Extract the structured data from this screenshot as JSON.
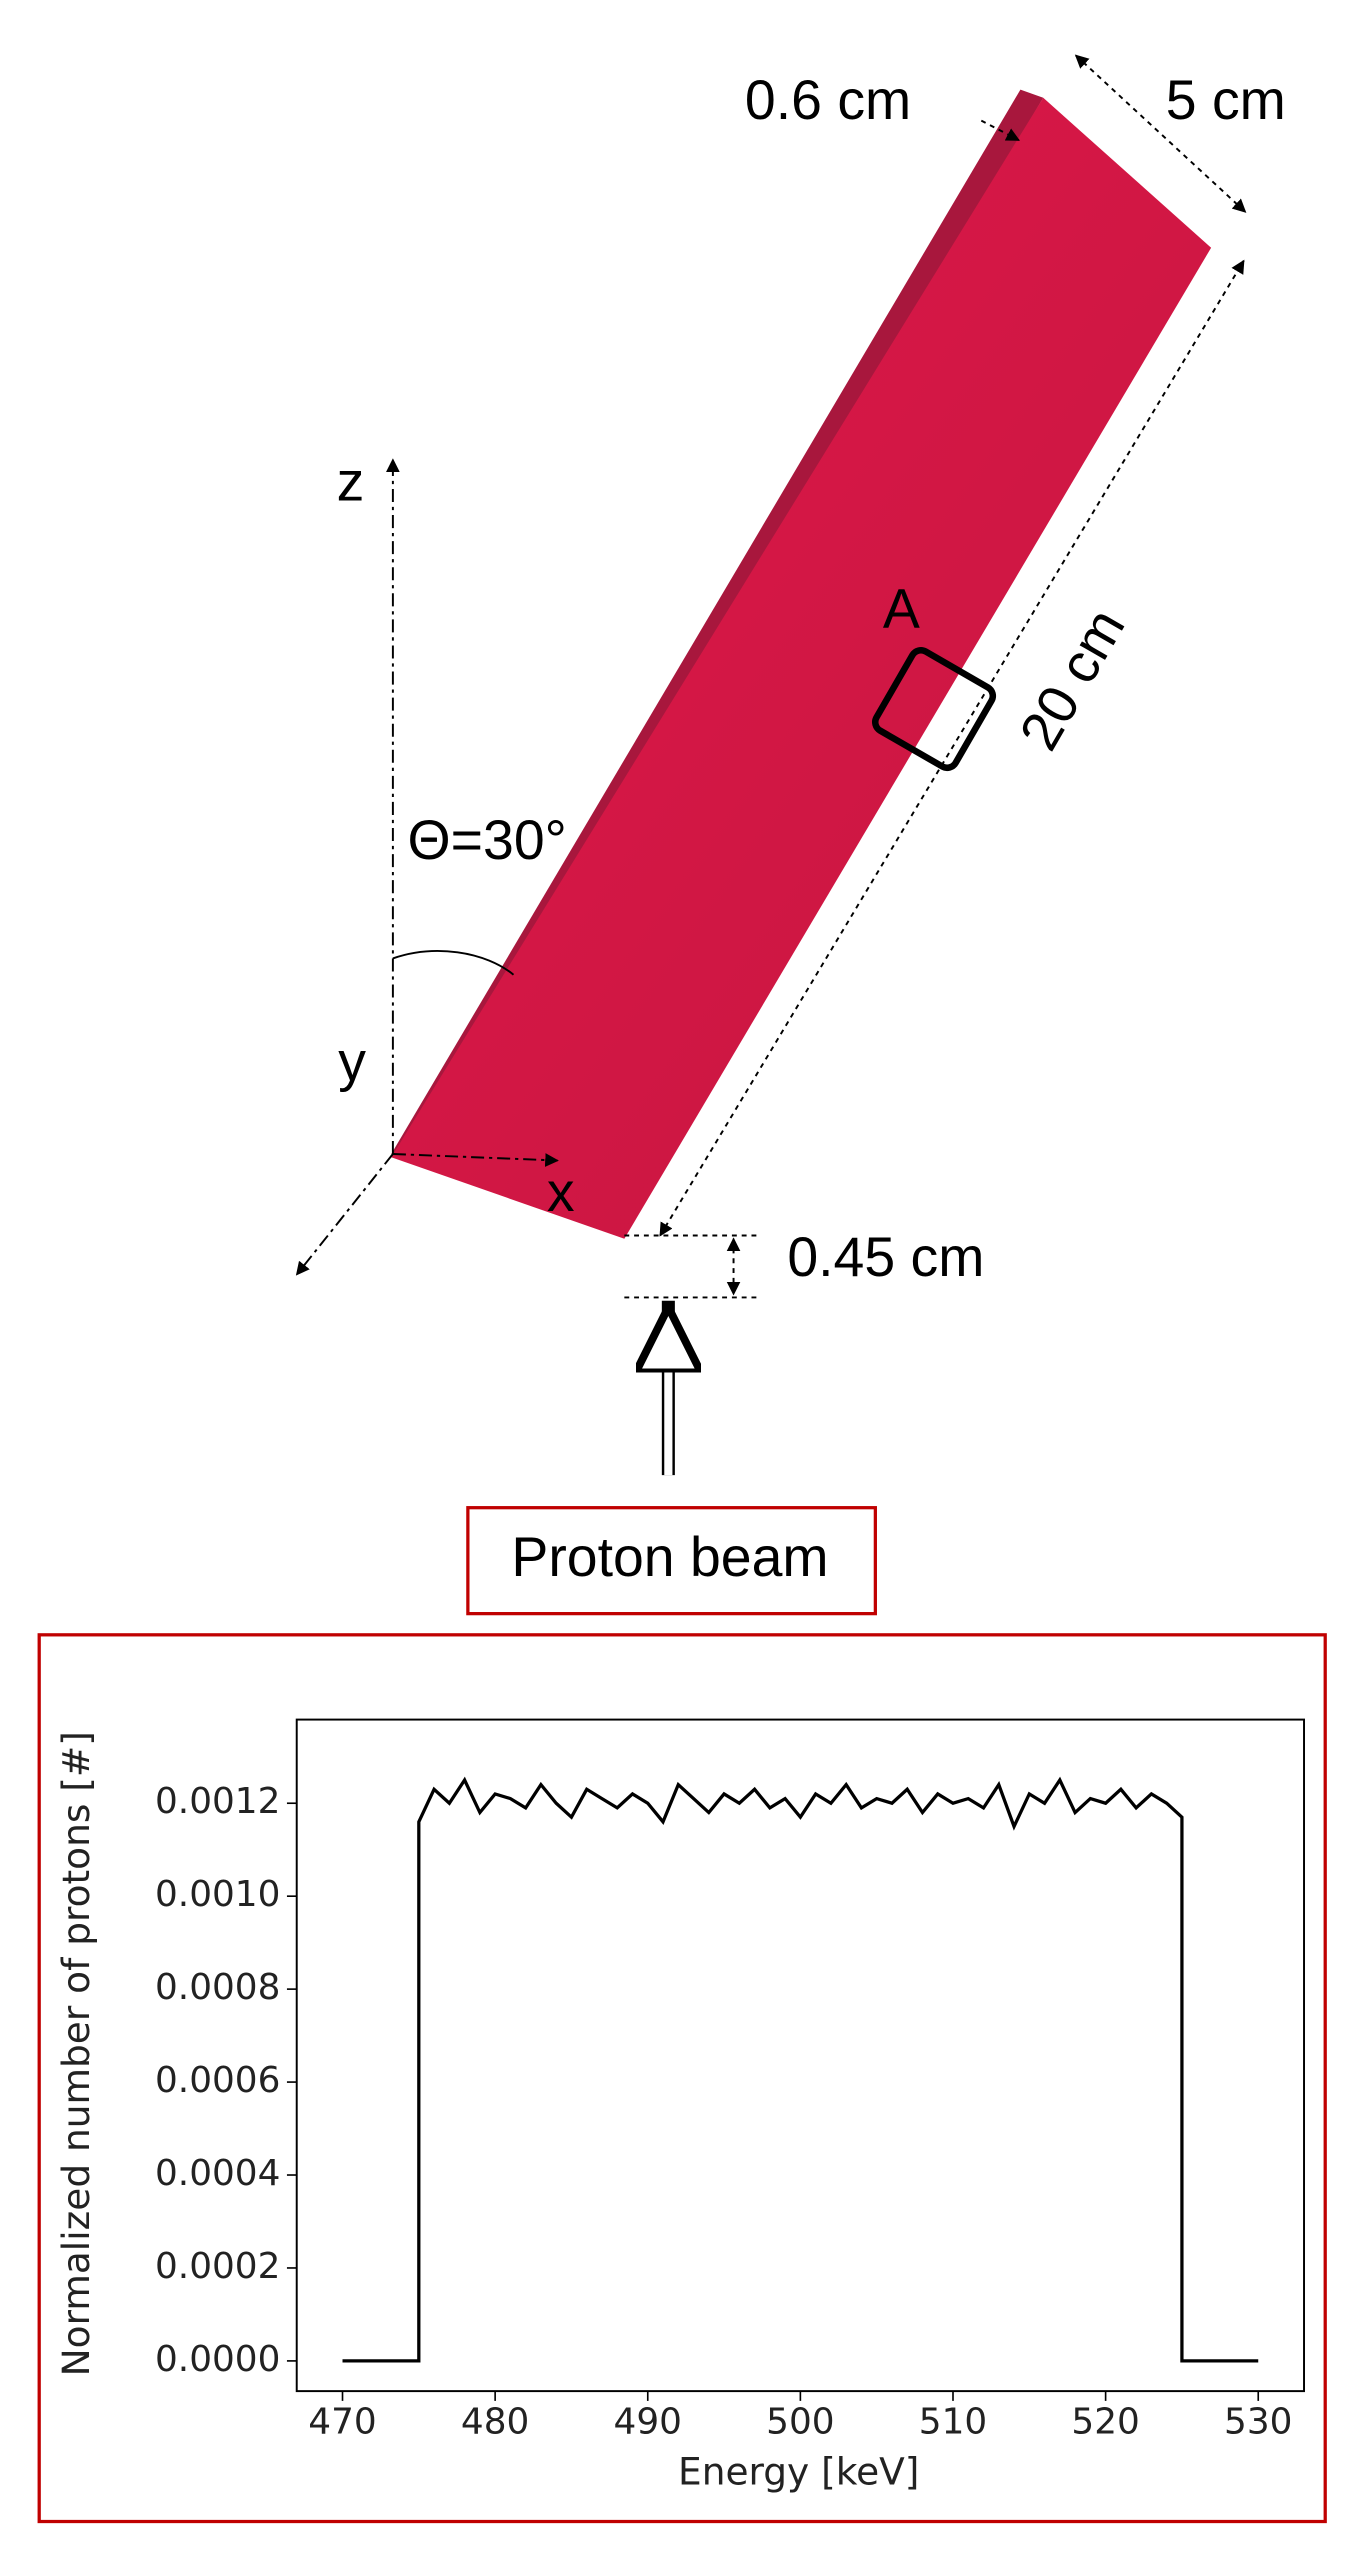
{
  "labels": {
    "thickness": "0.6 cm",
    "width": "5 cm",
    "length": "20 cm",
    "region": "A",
    "z_axis": "z",
    "angle": "Θ=30°",
    "y_axis": "y",
    "x_axis": "x",
    "gap": "0.45 cm",
    "beam": "Proton beam"
  },
  "chart_data": {
    "type": "line",
    "xlabel": "Energy [keV]",
    "ylabel": "Normalized number of protons [#]",
    "color": "#000000",
    "x": [
      470,
      475,
      475,
      476,
      477,
      478,
      479,
      480,
      481,
      482,
      483,
      484,
      485,
      486,
      487,
      488,
      489,
      490,
      491,
      492,
      493,
      494,
      495,
      496,
      497,
      498,
      499,
      500,
      501,
      502,
      503,
      504,
      505,
      506,
      507,
      508,
      509,
      510,
      511,
      512,
      513,
      514,
      515,
      516,
      517,
      518,
      519,
      520,
      521,
      522,
      523,
      524,
      525,
      525,
      530
    ],
    "values": [
      0,
      0,
      0.00116,
      0.00123,
      0.0012,
      0.00125,
      0.00118,
      0.00122,
      0.00121,
      0.00119,
      0.00124,
      0.0012,
      0.00117,
      0.00123,
      0.00121,
      0.00119,
      0.00122,
      0.0012,
      0.00116,
      0.00124,
      0.00121,
      0.00118,
      0.00122,
      0.0012,
      0.00123,
      0.00119,
      0.00121,
      0.00117,
      0.00122,
      0.0012,
      0.00124,
      0.00119,
      0.00121,
      0.0012,
      0.00123,
      0.00118,
      0.00122,
      0.0012,
      0.00121,
      0.00119,
      0.00124,
      0.00115,
      0.00122,
      0.0012,
      0.00125,
      0.00118,
      0.00121,
      0.0012,
      0.00123,
      0.00119,
      0.00122,
      0.0012,
      0.00117,
      0,
      0
    ],
    "xlim": [
      467,
      533
    ],
    "ylim": [
      -6.5e-05,
      0.00138
    ],
    "xticks": [
      470,
      480,
      490,
      500,
      510,
      520,
      530
    ],
    "yticks": [
      {
        "value": 0,
        "label": "0.0000"
      },
      {
        "value": 0.0002,
        "label": "0.0002"
      },
      {
        "value": 0.0004,
        "label": "0.0004"
      },
      {
        "value": 0.0006,
        "label": "0.0006"
      },
      {
        "value": 0.0008,
        "label": "0.0008"
      },
      {
        "value": 0.001,
        "label": "0.0010"
      },
      {
        "value": 0.0012,
        "label": "0.0012"
      }
    ]
  }
}
